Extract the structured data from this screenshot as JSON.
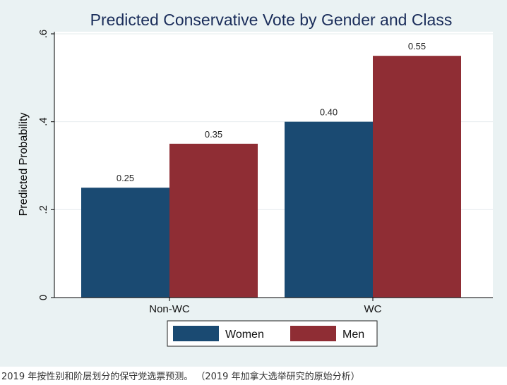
{
  "chart_data": {
    "type": "bar",
    "title": "Predicted Conservative Vote by Gender and Class",
    "xlabel": "",
    "ylabel": "Predicted Probability",
    "ylim": [
      0,
      0.6
    ],
    "yticks": [
      0,
      0.2,
      0.4,
      0.6
    ],
    "ytick_labels": [
      "0",
      ".2",
      ".4",
      ".6"
    ],
    "categories": [
      "Non-WC",
      "WC"
    ],
    "series": [
      {
        "name": "Women",
        "values": [
          0.25,
          0.4
        ],
        "labels": [
          "0.25",
          "0.40"
        ],
        "color": "#1a4a72"
      },
      {
        "name": "Men",
        "values": [
          0.35,
          0.55
        ],
        "labels": [
          "0.35",
          "0.55"
        ],
        "color": "#8f2d34"
      }
    ],
    "grid": true,
    "legend_position": "bottom",
    "background_color": "#eaf2f3",
    "title_color": "#1a2d5a"
  },
  "caption": "2019 年按性别和阶层划分的保守党选票预测。 （2019 年加拿大选举研究的原始分析）"
}
